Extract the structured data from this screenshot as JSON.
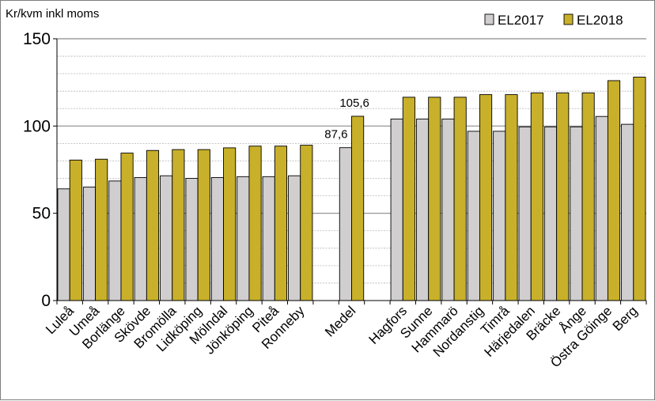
{
  "chart_data": {
    "type": "bar",
    "ylabel": "Kr/kvm inkl moms",
    "ylim": [
      0,
      150
    ],
    "yticks": [
      0,
      50,
      100,
      150
    ],
    "grid": "horizontal, every 10",
    "legend_position": "top-right",
    "categories": [
      "Luleå",
      "Umeå",
      "Borlänge",
      "Skövde",
      "Bromölla",
      "Lidköping",
      "Mölndal",
      "Jönköping",
      "Piteå",
      "Ronneby",
      "",
      "Medel",
      "",
      "Hagfors",
      "Sunne",
      "Hammarö",
      "Nordanstig",
      "Timrå",
      "Härjedalen",
      "Bräcke",
      "Ånge",
      "Östra Göinge",
      "Berg"
    ],
    "series": [
      {
        "name": "EL2017",
        "color": "#d0cece",
        "values": [
          64,
          65,
          68.5,
          70.5,
          71.5,
          70,
          70.5,
          71,
          71,
          71.5,
          null,
          87.6,
          null,
          104,
          104,
          104,
          97,
          97,
          99.5,
          99.5,
          99.5,
          105.5,
          101
        ]
      },
      {
        "name": "EL2018",
        "color": "#c8b02a",
        "values": [
          80.5,
          81,
          84.5,
          86,
          86.5,
          86.5,
          87.5,
          88.5,
          88.5,
          89,
          null,
          105.6,
          null,
          116.5,
          116.5,
          116.5,
          118,
          118,
          119,
          119,
          119,
          126,
          128
        ]
      }
    ],
    "data_labels": [
      {
        "category": "Medel",
        "series": "EL2017",
        "text": "87,6"
      },
      {
        "category": "Medel",
        "series": "EL2018",
        "text": "105,6"
      }
    ]
  }
}
